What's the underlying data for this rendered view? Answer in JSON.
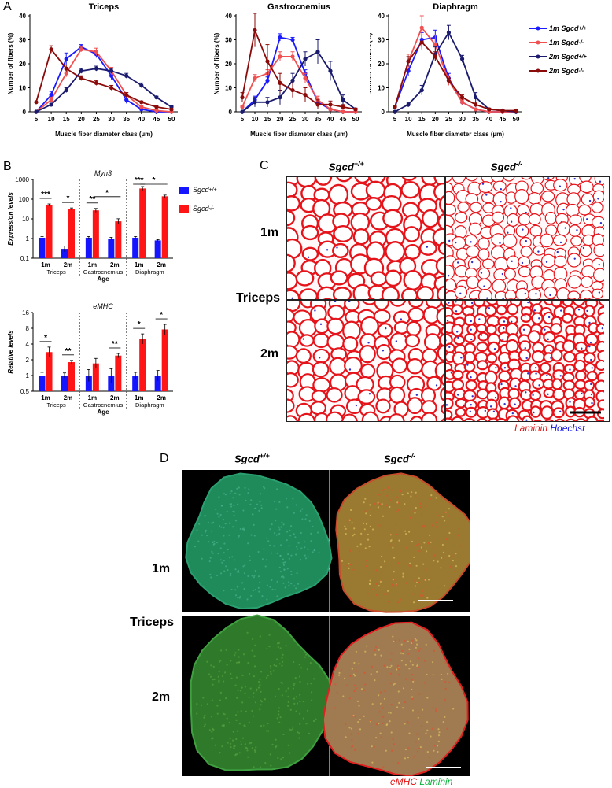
{
  "panel_labels": {
    "a": "A",
    "b": "B",
    "c": "C",
    "d": "D"
  },
  "legend_a": [
    {
      "prefix": "1m ",
      "gene": "Sgcd",
      "sup": "+/+",
      "color": "#1a1aff"
    },
    {
      "prefix": "1m ",
      "gene": "Sgcd",
      "sup": "-/-",
      "color": "#f05050"
    },
    {
      "prefix": "2m ",
      "gene": "Sgcd",
      "sup": "+/+",
      "color": "#1a1a6e"
    },
    {
      "prefix": "2m ",
      "gene": "Sgcd",
      "sup": "-/-",
      "color": "#8b0a0a"
    }
  ],
  "legend_b": [
    {
      "gene": "Sgcd",
      "sup": "+/+",
      "color": "#1515ff"
    },
    {
      "gene": "Sgcd",
      "sup": "-/-",
      "color": "#ff1515"
    }
  ],
  "panel_c": {
    "col_wt": "Sgcd",
    "col_wt_sup": "+/+",
    "col_ko": "Sgcd",
    "col_ko_sup": "-/-",
    "row1": "1m",
    "row2": "2m",
    "side": "Triceps",
    "stain1": "Laminin",
    "stain2": "Hoechst"
  },
  "panel_d": {
    "col_wt": "Sgcd",
    "col_wt_sup": "+/+",
    "col_ko": "Sgcd",
    "col_ko_sup": "-/-",
    "row1": "1m",
    "row2": "2m",
    "side": "Triceps",
    "stain1": "eMHC",
    "stain2": "Laminin"
  },
  "chart_data": [
    {
      "type": "line",
      "title": "Triceps",
      "xlabel": "Muscle fiber diameter class (µm)",
      "ylabel": "Number of fibers (%)",
      "x": [
        5,
        10,
        15,
        20,
        25,
        30,
        35,
        40,
        45,
        50
      ],
      "ylim": [
        0,
        40
      ],
      "yticks": [
        0,
        10,
        20,
        30,
        40
      ],
      "series": [
        {
          "name": "1m Sgcd+/+",
          "color": "#1a1aff",
          "values": [
            0,
            7,
            22,
            27,
            24,
            15,
            5,
            1,
            0,
            0
          ],
          "err": [
            0,
            1.5,
            2.5,
            1,
            1.5,
            1.5,
            1.5,
            0.5,
            0,
            0
          ]
        },
        {
          "name": "1m Sgcd-/-",
          "color": "#f05050",
          "values": [
            0,
            5,
            16,
            26,
            25,
            17,
            7,
            2,
            0.5,
            0
          ],
          "err": [
            0,
            1,
            1.5,
            1,
            1.5,
            1.5,
            1,
            0.5,
            0.3,
            0
          ]
        },
        {
          "name": "2m Sgcd+/+",
          "color": "#1a1a6e",
          "values": [
            0,
            3,
            9,
            17,
            18,
            17,
            15,
            11,
            6,
            2
          ],
          "err": [
            0,
            0.5,
            1,
            1,
            1,
            1,
            1,
            1,
            0.5,
            0.5
          ]
        },
        {
          "name": "2m Sgcd-/-",
          "color": "#8b0a0a",
          "values": [
            4,
            26,
            18,
            14,
            12,
            10,
            7,
            4,
            2,
            1
          ],
          "err": [
            0,
            1.5,
            1.5,
            1,
            1,
            1,
            1,
            0.5,
            0.5,
            0.3
          ]
        }
      ]
    },
    {
      "type": "line",
      "title": "Gastrocnemius",
      "xlabel": "Muscle fiber diameter class (µm)",
      "ylabel": "Number of fibers (%)",
      "x": [
        5,
        10,
        15,
        20,
        25,
        30,
        35,
        40,
        45,
        50
      ],
      "ylim": [
        0,
        40
      ],
      "yticks": [
        0,
        10,
        20,
        30,
        40
      ],
      "series": [
        {
          "name": "1m Sgcd+/+",
          "color": "#1a1aff",
          "values": [
            0,
            5,
            13,
            31,
            30,
            16,
            4,
            1,
            0,
            0
          ],
          "err": [
            0,
            1.5,
            1.5,
            1.5,
            1,
            1.5,
            1,
            0.5,
            0,
            0
          ]
        },
        {
          "name": "1m Sgcd-/-",
          "color": "#f05050",
          "values": [
            2,
            14,
            16,
            23,
            23,
            14,
            5,
            1,
            0,
            0
          ],
          "err": [
            0.5,
            1.5,
            1.5,
            2,
            2,
            2,
            1.5,
            0.5,
            0,
            0
          ]
        },
        {
          "name": "2m Sgcd+/+",
          "color": "#1a1a6e",
          "values": [
            0,
            4,
            4,
            6,
            13,
            22,
            25,
            17,
            5,
            1
          ],
          "err": [
            0,
            2,
            2,
            3,
            3,
            3,
            5,
            4,
            2,
            0.5
          ]
        },
        {
          "name": "2m Sgcd-/-",
          "color": "#8b0a0a",
          "values": [
            6,
            34,
            21,
            12,
            9,
            7,
            3,
            3,
            2,
            1
          ],
          "err": [
            2,
            7,
            7,
            4,
            3,
            3,
            2,
            1.5,
            1,
            0.5
          ]
        }
      ]
    },
    {
      "type": "line",
      "title": "Diaphragm",
      "xlabel": "Muscle fiber diameter class (µm)",
      "ylabel": "Number of fibers (%)",
      "x": [
        5,
        10,
        15,
        20,
        25,
        30,
        35,
        40,
        45,
        50
      ],
      "ylim": [
        0,
        40
      ],
      "yticks": [
        0,
        10,
        20,
        30,
        40
      ],
      "series": [
        {
          "name": "1m Sgcd+/+",
          "color": "#1a1aff",
          "values": [
            2,
            17,
            30,
            31,
            14,
            4,
            1,
            0,
            0,
            0
          ],
          "err": [
            0.5,
            2,
            3,
            3,
            2,
            1,
            0.5,
            0,
            0,
            0
          ]
        },
        {
          "name": "1m Sgcd-/-",
          "color": "#f05050",
          "values": [
            2,
            21,
            35,
            28,
            13,
            4,
            1,
            0,
            0,
            0
          ],
          "err": [
            0.5,
            3,
            5,
            4,
            2,
            1,
            0.5,
            0,
            0,
            0
          ]
        },
        {
          "name": "2m Sgcd+/+",
          "color": "#1a1a6e",
          "values": [
            0,
            3,
            9,
            24,
            33,
            22,
            6,
            1,
            0.5,
            0
          ],
          "err": [
            0,
            1,
            2,
            3,
            3,
            1.5,
            2,
            0.5,
            0.3,
            0
          ]
        },
        {
          "name": "2m Sgcd-/-",
          "color": "#8b0a0a",
          "values": [
            2,
            21,
            29,
            23,
            13,
            6,
            3,
            1,
            0.5,
            0.5
          ],
          "err": [
            0.5,
            2,
            3,
            2,
            1,
            1,
            1,
            0.5,
            0.3,
            0.3
          ]
        }
      ]
    },
    {
      "type": "bar",
      "title": "Myh3",
      "ylabel": "Expression levels",
      "xlabel": "Age",
      "scale": "log10",
      "ylim": [
        0.1,
        1000
      ],
      "yticks": [
        "0.1",
        "1",
        "10",
        "100",
        "1000"
      ],
      "groups": [
        {
          "name": "Triceps",
          "ages": [
            "1m",
            "2m"
          ]
        },
        {
          "name": "Gastrocnemius",
          "ages": [
            "1m",
            "2m"
          ]
        },
        {
          "name": "Diaphragm",
          "ages": [
            "1m",
            "2m"
          ]
        }
      ],
      "series": [
        {
          "name": "Sgcd+/+",
          "color": "#1515ff",
          "values": [
            1.1,
            0.3,
            1.1,
            1.0,
            1.1,
            0.8
          ],
          "err_ratio": [
            1.15,
            1.4,
            1.15,
            1.15,
            1.15,
            1.1
          ]
        },
        {
          "name": "Sgcd-/-",
          "color": "#ff1515",
          "values": [
            50,
            32,
            27,
            7.5,
            350,
            140
          ],
          "err_ratio": [
            1.15,
            1.12,
            1.25,
            1.35,
            1.25,
            1.15
          ]
        }
      ],
      "significance": [
        {
          "label": "***",
          "from_bar": 0,
          "to_bar": 1
        },
        {
          "label": "*",
          "from_bar": 2,
          "to_bar": 3
        },
        {
          "label": "**",
          "from_bar": 4,
          "to_bar": 5
        },
        {
          "label": "*",
          "from_bar": 5,
          "to_bar": 7
        },
        {
          "label": "***",
          "from_bar": 8,
          "to_bar": 9
        },
        {
          "label": "*",
          "from_bar": 9,
          "to_bar": 11
        }
      ]
    },
    {
      "type": "bar",
      "title": "eMHC",
      "ylabel": "Relative levels",
      "xlabel": "Age",
      "scale": "log2",
      "ylim": [
        0.5,
        16
      ],
      "yticks": [
        "0.5",
        "1",
        "2",
        "4",
        "8",
        "16"
      ],
      "groups": [
        {
          "name": "Triceps",
          "ages": [
            "1m",
            "2m"
          ]
        },
        {
          "name": "Gastrocnemius",
          "ages": [
            "1m",
            "2m"
          ]
        },
        {
          "name": "Diaphragm",
          "ages": [
            "1m",
            "2m"
          ]
        }
      ],
      "series": [
        {
          "name": "Sgcd+/+",
          "color": "#1515ff",
          "values": [
            1.0,
            1.0,
            1.0,
            1.0,
            1.0,
            1.0
          ],
          "err_ratio": [
            1.15,
            1.12,
            1.3,
            1.35,
            1.15,
            1.25
          ]
        },
        {
          "name": "Sgcd-/-",
          "color": "#ff1515",
          "values": [
            2.8,
            1.8,
            1.7,
            2.4,
            5.0,
            7.6
          ],
          "err_ratio": [
            1.25,
            1.08,
            1.25,
            1.1,
            1.25,
            1.25
          ]
        }
      ],
      "significance": [
        {
          "label": "*",
          "from_bar": 0,
          "to_bar": 1
        },
        {
          "label": "**",
          "from_bar": 2,
          "to_bar": 3
        },
        {
          "label": "**",
          "from_bar": 6,
          "to_bar": 7
        },
        {
          "label": "*",
          "from_bar": 8,
          "to_bar": 9
        },
        {
          "label": "*",
          "from_bar": 10,
          "to_bar": 11
        }
      ]
    }
  ]
}
